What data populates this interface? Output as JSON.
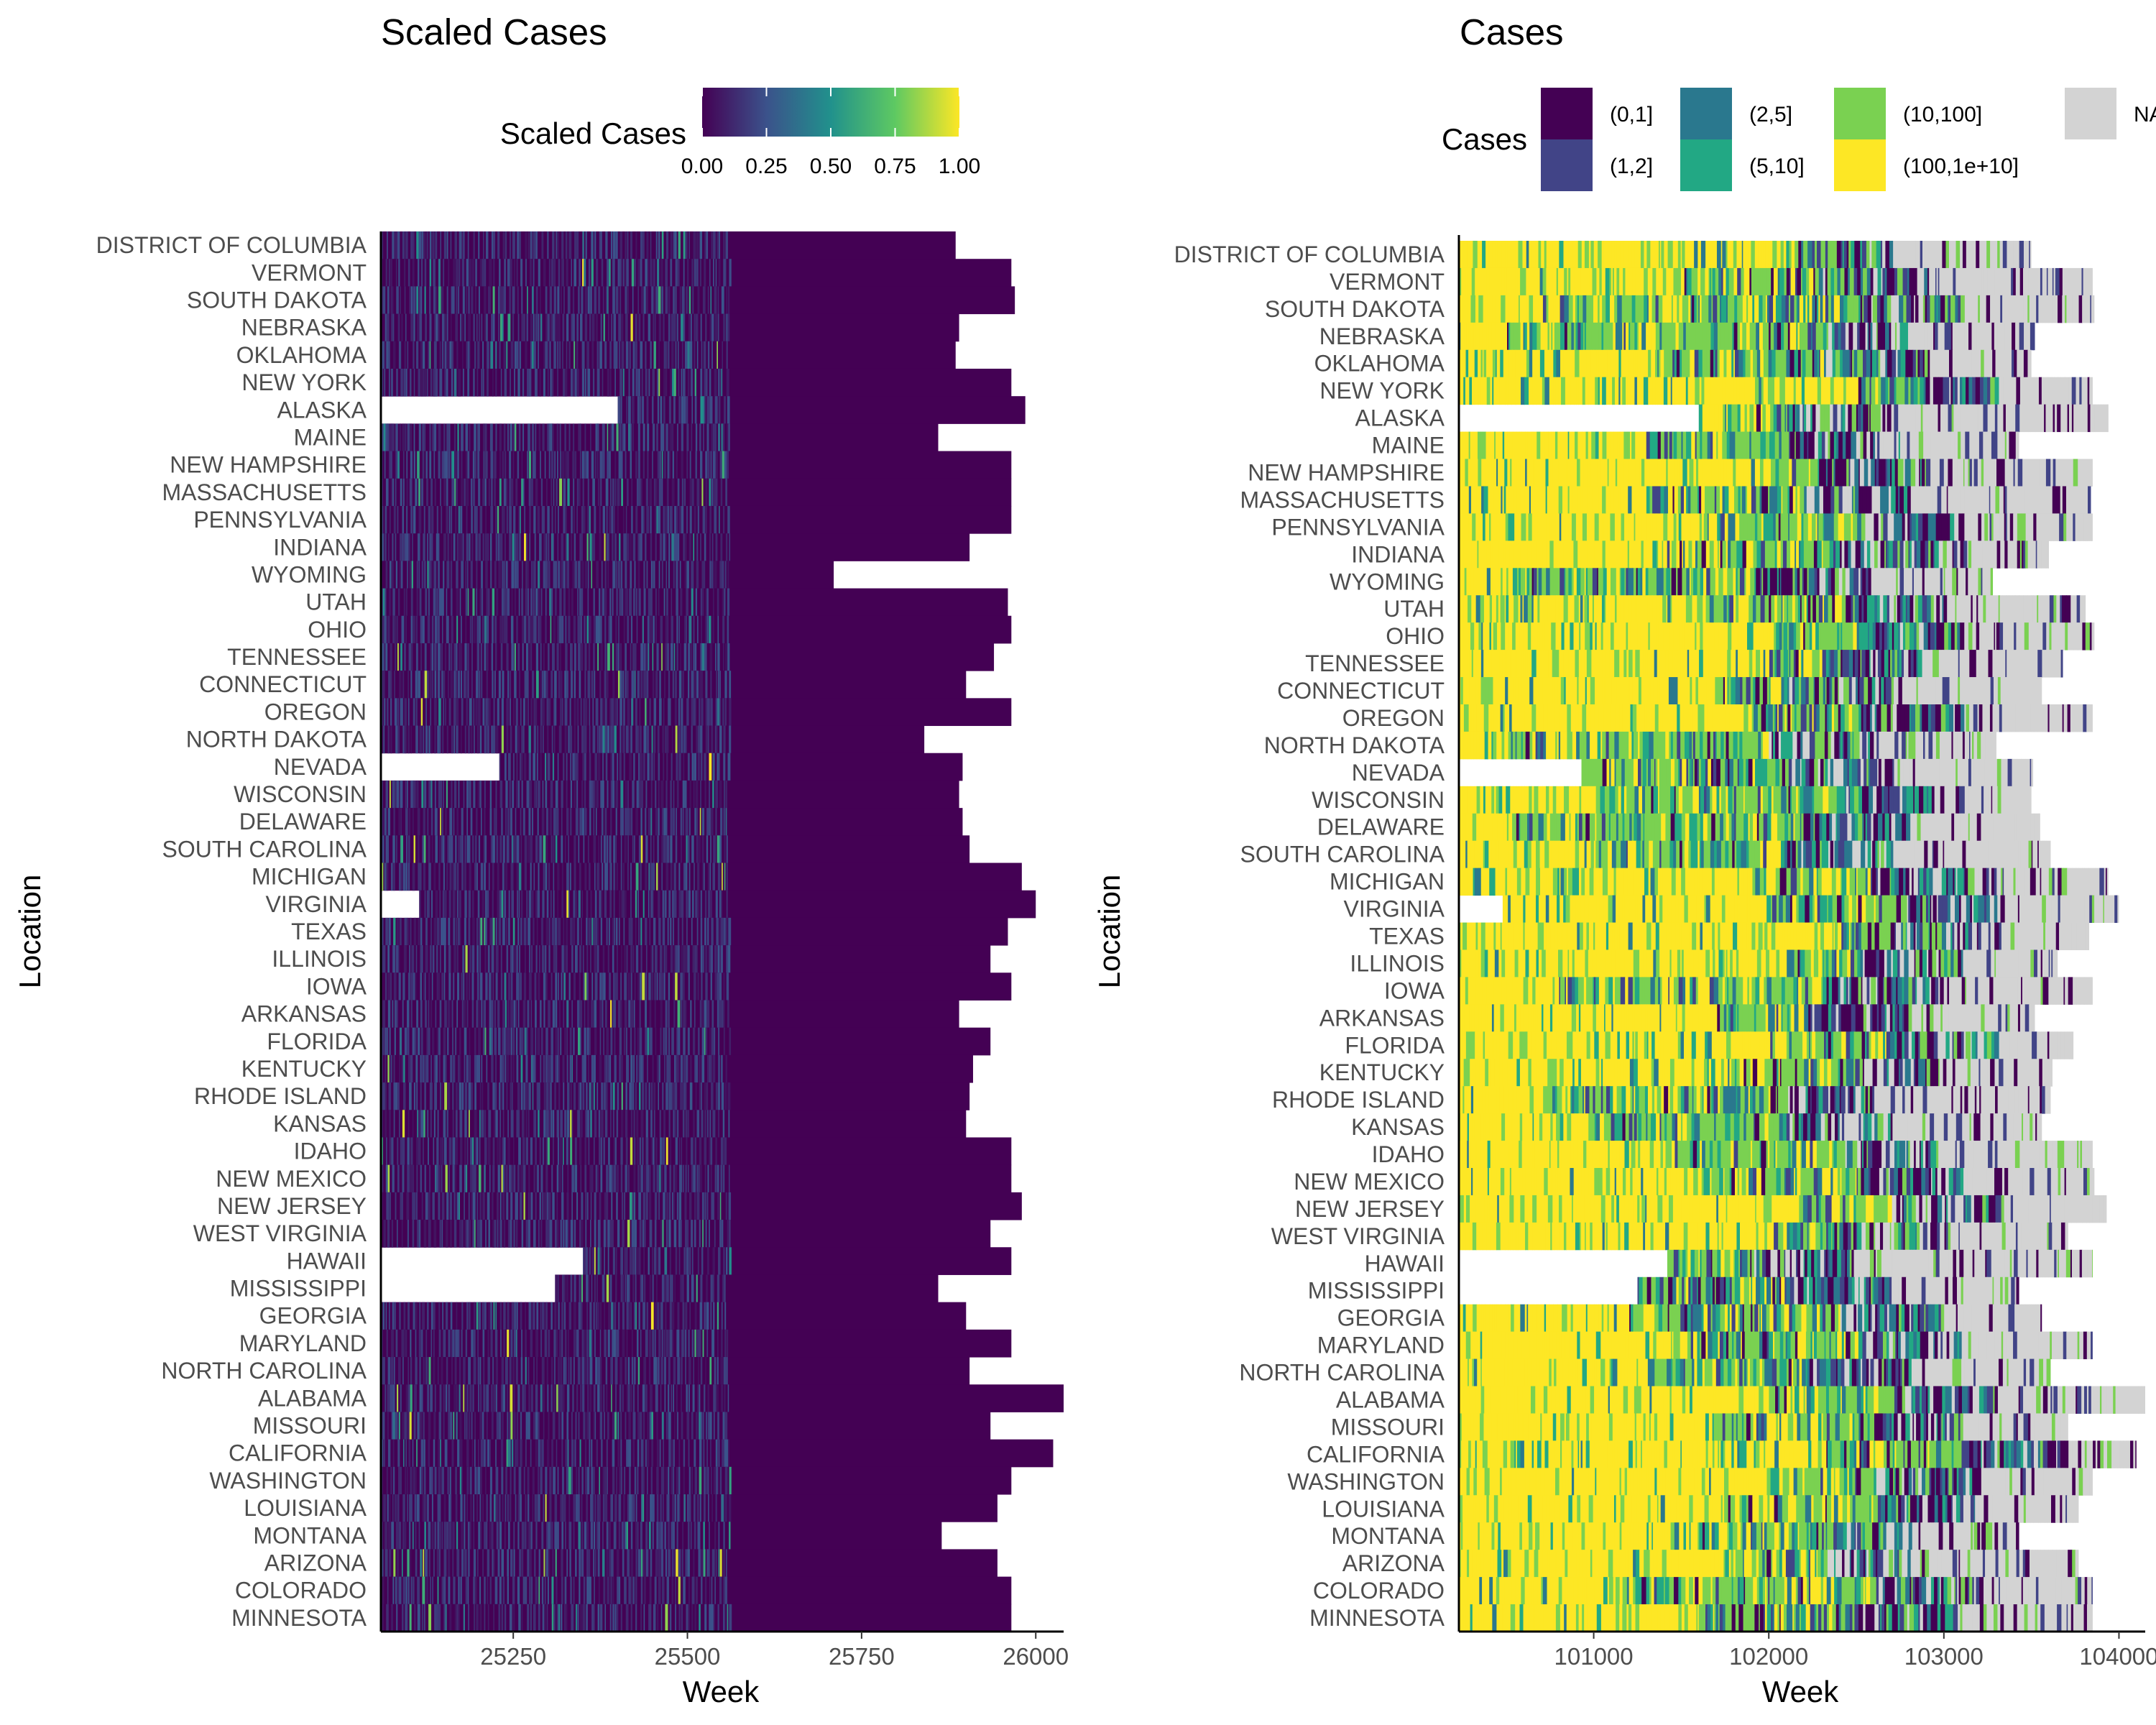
{
  "locations": [
    "DISTRICT OF COLUMBIA",
    "VERMONT",
    "SOUTH DAKOTA",
    "NEBRASKA",
    "OKLAHOMA",
    "NEW YORK",
    "ALASKA",
    "MAINE",
    "NEW HAMPSHIRE",
    "MASSACHUSETTS",
    "PENNSYLVANIA",
    "INDIANA",
    "WYOMING",
    "UTAH",
    "OHIO",
    "TENNESSEE",
    "CONNECTICUT",
    "OREGON",
    "NORTH DAKOTA",
    "NEVADA",
    "WISCONSIN",
    "DELAWARE",
    "SOUTH CAROLINA",
    "MICHIGAN",
    "VIRGINIA",
    "TEXAS",
    "ILLINOIS",
    "IOWA",
    "ARKANSAS",
    "FLORIDA",
    "KENTUCKY",
    "RHODE ISLAND",
    "KANSAS",
    "IDAHO",
    "NEW MEXICO",
    "NEW JERSEY",
    "WEST VIRGINIA",
    "HAWAII",
    "MISSISSIPPI",
    "GEORGIA",
    "MARYLAND",
    "NORTH CAROLINA",
    "ALABAMA",
    "MISSOURI",
    "CALIFORNIA",
    "WASHINGTON",
    "LOUISIANA",
    "MONTANA",
    "ARIZONA",
    "COLORADO",
    "MINNESOTA"
  ],
  "chart_data": [
    {
      "type": "heatmap",
      "title": "Scaled Cases",
      "xlabel": "Week",
      "ylabel": "Location",
      "xlim": [
        25060,
        26040
      ],
      "xticks": [
        25250,
        25500,
        25750,
        26000
      ],
      "x_tick_labels": [
        "25250",
        "25500",
        "25750",
        "26000"
      ],
      "legend": {
        "title": "Scaled Cases",
        "type": "continuous",
        "placement": "top",
        "colors": [
          "#440154",
          "#3b528b",
          "#21918c",
          "#5ec962",
          "#fde725"
        ],
        "range": [
          0,
          1
        ],
        "tick_labels": [
          "0.00",
          "0.25",
          "0.50",
          "0.75",
          "1.00"
        ]
      },
      "row_start_week": [
        25060,
        25060,
        25060,
        25060,
        25060,
        25060,
        25400,
        25060,
        25060,
        25060,
        25060,
        25060,
        25060,
        25060,
        25060,
        25060,
        25060,
        25060,
        25060,
        25230,
        25060,
        25060,
        25060,
        25060,
        25115,
        25060,
        25060,
        25060,
        25060,
        25060,
        25060,
        25060,
        25060,
        25060,
        25060,
        25060,
        25060,
        25350,
        25310,
        25060,
        25060,
        25060,
        25060,
        25060,
        25060,
        25060,
        25060,
        25060,
        25060,
        25060,
        25060
      ],
      "row_end_week": [
        25885,
        25965,
        25970,
        25890,
        25885,
        25965,
        25985,
        25860,
        25965,
        25965,
        25965,
        25905,
        25710,
        25960,
        25965,
        25940,
        25900,
        25965,
        25840,
        25895,
        25890,
        25895,
        25905,
        25980,
        26000,
        25960,
        25935,
        25965,
        25890,
        25935,
        25910,
        25905,
        25900,
        25965,
        25965,
        25980,
        25935,
        25965,
        25860,
        25900,
        25965,
        25905,
        26040,
        25935,
        26025,
        25965,
        25945,
        25865,
        25945,
        25965,
        25965
      ]
    },
    {
      "type": "heatmap",
      "title": "Cases",
      "xlabel": "Week",
      "ylabel": "Location",
      "xlim": [
        100230,
        104150
      ],
      "xticks": [
        101000,
        102000,
        103000,
        104000
      ],
      "x_tick_labels": [
        "101000",
        "102000",
        "103000",
        "104000"
      ],
      "legend": {
        "title": "Cases",
        "type": "categorical",
        "placement": "top",
        "categories": [
          "(0,1]",
          "(1,2]",
          "(2,5]",
          "(5,10]",
          "(10,100]",
          "(100,1e+10]",
          "NA"
        ],
        "colors": [
          "#440154",
          "#414487",
          "#2a788e",
          "#22a884",
          "#7ad151",
          "#fde725",
          "#d3d3d3"
        ]
      },
      "row_start_week": [
        100230,
        100230,
        100230,
        100230,
        100230,
        100230,
        101600,
        100230,
        100230,
        100230,
        100230,
        100230,
        100230,
        100230,
        100230,
        100230,
        100230,
        100230,
        100230,
        100930,
        100230,
        100230,
        100230,
        100230,
        100480,
        100230,
        100230,
        100230,
        100230,
        100230,
        100230,
        100230,
        100230,
        100230,
        100230,
        100230,
        100230,
        101420,
        101250,
        100230,
        100230,
        100230,
        100230,
        100230,
        100230,
        100230,
        100230,
        100230,
        100230,
        100230,
        100230
      ],
      "row_end_week": [
        103500,
        103850,
        103860,
        103520,
        103500,
        103850,
        103940,
        103430,
        103850,
        103840,
        103850,
        103600,
        103280,
        103810,
        103860,
        103680,
        103560,
        103850,
        103300,
        103510,
        103500,
        103550,
        103610,
        103940,
        104000,
        103830,
        103650,
        103850,
        103520,
        103740,
        103620,
        103610,
        103560,
        103850,
        103860,
        103930,
        103710,
        103850,
        103430,
        103560,
        103850,
        103610,
        104150,
        103710,
        104100,
        103850,
        103770,
        103430,
        103770,
        103850,
        103850
      ],
      "row_na_start_week": [
        102700,
        102900,
        103100,
        102800,
        102900,
        103300,
        102700,
        102750,
        102900,
        102800,
        103100,
        103000,
        102600,
        103000,
        103100,
        102900,
        102700,
        103100,
        102600,
        102700,
        103000,
        102800,
        102700,
        103200,
        103300,
        103300,
        103100,
        102900,
        102800,
        103300,
        103000,
        102600,
        102700,
        103000,
        103100,
        103300,
        103000,
        102500,
        102700,
        103000,
        103100,
        102800,
        103300,
        103100,
        103700,
        103200,
        103200,
        102800,
        102900,
        103200,
        103100
      ],
      "row_yellow_until_week": [
        102100,
        101500,
        100700,
        100500,
        101300,
        102500,
        101700,
        101300,
        102000,
        101300,
        101700,
        101400,
        100500,
        101500,
        102000,
        102000,
        101700,
        101900,
        100500,
        100700,
        101000,
        100500,
        101000,
        101900,
        102000,
        102400,
        102100,
        100800,
        101700,
        102000,
        101800,
        100700,
        101000,
        101300,
        101700,
        102200,
        102000,
        101300,
        101200,
        101200,
        101500,
        101300,
        102000,
        101700,
        102300,
        102000,
        101700,
        101600,
        101800,
        101200,
        101600
      ]
    }
  ]
}
